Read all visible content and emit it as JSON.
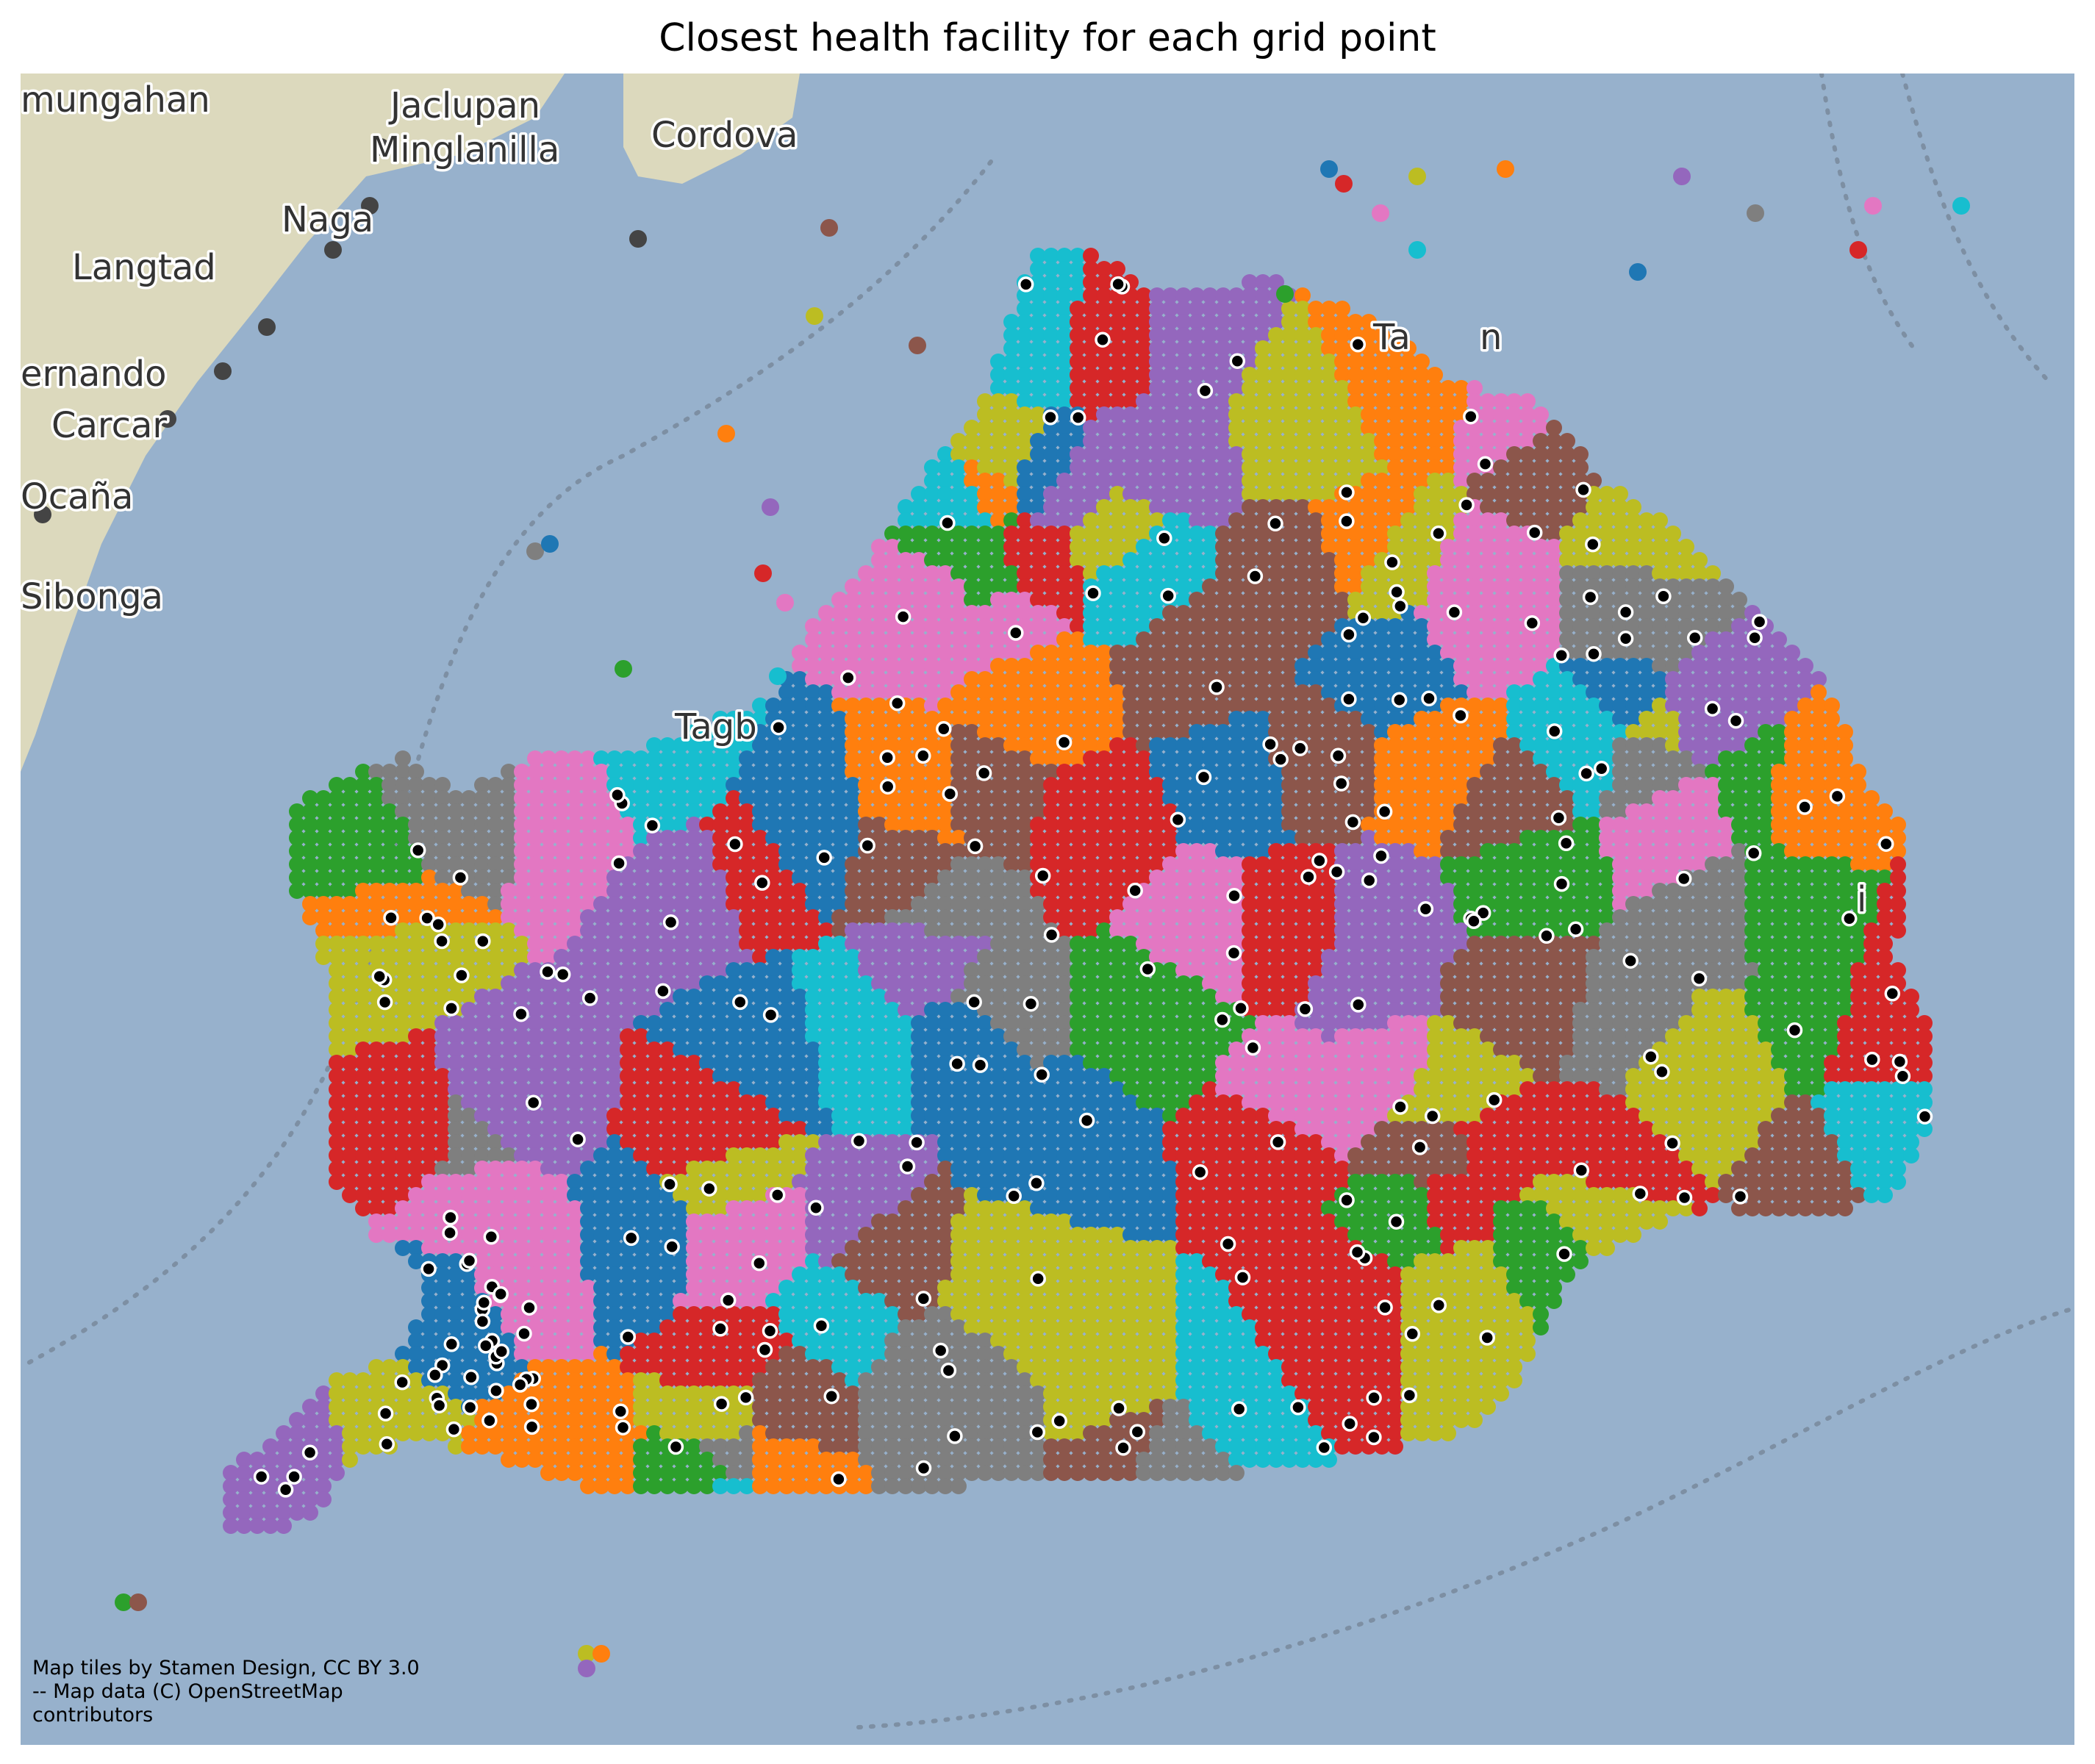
{
  "title": "Closest health facility for each grid point",
  "attribution": {
    "line1": "Map tiles by Stamen Design, CC BY 3.0",
    "line2": "-- Map data (C) OpenStreetMap",
    "line3": "contributors"
  },
  "place_labels": [
    "mungahan",
    "Jaclupan",
    "Minglanilla",
    "Cordova",
    "Naga",
    "Langtad",
    "ernando",
    "Carcar",
    "Ocaña",
    "Sibonga",
    "Tagb",
    "Ta",
    "n",
    "i"
  ],
  "colors": {
    "water": "#97b1cc",
    "land": "#dddcc2",
    "facility_marker": "#000000",
    "facility_outline": "#ffffff",
    "region_palette": [
      "#1f77b4",
      "#ff7f0e",
      "#2ca02c",
      "#d62728",
      "#9467bd",
      "#8c564b",
      "#e377c2",
      "#7f7f7f",
      "#bcbd22",
      "#17becf"
    ]
  },
  "layers": {
    "basemap": "Stamen terrain tiles",
    "grid_points": "colored by closest health facility (tab10 palette)",
    "facilities": "black circles with white outline"
  }
}
